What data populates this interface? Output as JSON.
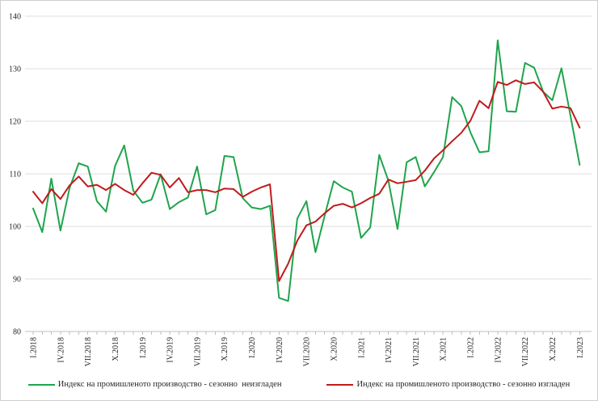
{
  "chart_data": {
    "type": "line",
    "title": "",
    "xlabel": "",
    "ylabel": "",
    "ylim": [
      80,
      140
    ],
    "y_ticks": [
      80,
      90,
      100,
      110,
      120,
      130,
      140
    ],
    "grid": "horizontal",
    "legend_position": "bottom",
    "months_total": 61,
    "x_tick_every": 3,
    "x_tick_labels": [
      "I.2018",
      "IV.2018",
      "VII.2018",
      "X.2018",
      "I.2019",
      "IV.2019",
      "VII.2019",
      "X.2019",
      "I.2020",
      "IV.2020",
      "VII.2020",
      "X.2020",
      "I.2021",
      "IV.2021",
      "VII.2021",
      "X.2021",
      "I.2022",
      "IV.2022",
      "VII.2022",
      "X.2022",
      "I.2023"
    ],
    "series": [
      {
        "name": "Индекс на промишленото производство - сезонно  неизгладен",
        "color": "#1fa44c",
        "values": [
          103.4,
          98.9,
          109.1,
          99.2,
          107.3,
          112.0,
          111.4,
          104.8,
          102.8,
          111.5,
          115.4,
          106.8,
          104.5,
          105.1,
          109.9,
          103.3,
          104.6,
          105.5,
          111.4,
          102.3,
          103.1,
          113.4,
          113.2,
          105.4,
          103.6,
          103.3,
          103.9,
          86.4,
          85.8,
          101.5,
          104.8,
          95.1,
          102.0,
          108.6,
          107.4,
          106.6,
          97.8,
          99.8,
          113.6,
          108.7,
          99.5,
          112.2,
          113.2,
          107.6,
          110.3,
          113.2,
          124.6,
          122.9,
          117.9,
          114.1,
          114.3,
          135.4,
          121.9,
          121.8,
          131.1,
          130.2,
          125.6,
          124.0,
          130.1,
          121.0,
          111.7
        ]
      },
      {
        "name": "Индекс на промишленото производство - сезонно изгладен",
        "color": "#c11b1b",
        "values": [
          106.6,
          104.4,
          107.1,
          105.2,
          107.8,
          109.5,
          107.6,
          107.9,
          106.9,
          108.1,
          106.9,
          106.0,
          108.2,
          110.2,
          109.8,
          107.4,
          109.2,
          106.5,
          106.9,
          106.9,
          106.5,
          107.2,
          107.1,
          105.6,
          106.6,
          107.4,
          108.0,
          89.6,
          92.9,
          97.3,
          100.2,
          100.9,
          102.5,
          103.9,
          104.3,
          103.6,
          104.4,
          105.4,
          106.2,
          108.9,
          108.2,
          108.5,
          108.8,
          110.6,
          112.9,
          114.5,
          116.2,
          117.8,
          120.1,
          123.9,
          122.5,
          127.5,
          126.9,
          127.8,
          127.1,
          127.4,
          125.6,
          122.4,
          122.8,
          122.5,
          118.8
        ]
      }
    ],
    "colors": {
      "gridline": "#dcdcdc",
      "axis": "#bfbfbf",
      "tick": "#bfbfbf",
      "text": "#262626",
      "background": "#ffffff",
      "frame_border": "#cfcfcf"
    }
  }
}
